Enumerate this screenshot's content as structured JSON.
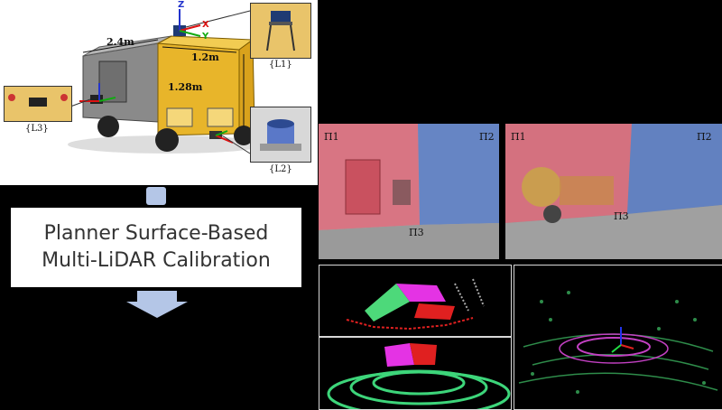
{
  "vehicle": {
    "dim_length": "2.4m",
    "dim_width": "1.2m",
    "dim_height": "1.28m",
    "axis_x": "X",
    "axis_y": "Y",
    "axis_z": "Z",
    "lidar_labels": [
      "{L1}",
      "{L2}",
      "{L3}"
    ]
  },
  "method": {
    "line1": "Planner Surface-Based",
    "line2": "Multi-LiDAR Calibration"
  },
  "planes": {
    "photo1": [
      "Π1",
      "Π2",
      "Π3"
    ],
    "photo2": [
      "Π1",
      "Π2",
      "Π3"
    ]
  },
  "colors": {
    "arrow": "#b4c6e7",
    "plane1": "#e06c7c",
    "plane2": "#5b7fc9",
    "plane3": "#9a9a9a",
    "van_body": "#e8b52a"
  }
}
